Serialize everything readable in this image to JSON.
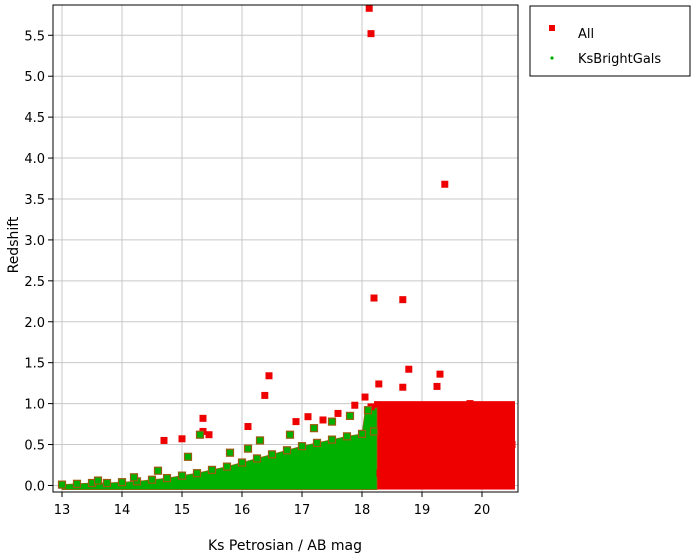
{
  "chart_data": {
    "type": "scatter",
    "xlabel": "Ks Petrosian / AB mag",
    "ylabel": "Redshift",
    "xlim": [
      12.85,
      20.6
    ],
    "ylim": [
      -0.08,
      5.87
    ],
    "x_ticks": [
      13,
      14,
      15,
      16,
      17,
      18,
      19,
      20
    ],
    "y_ticks": [
      0.0,
      0.5,
      1.0,
      1.5,
      2.0,
      2.5,
      3.0,
      3.5,
      4.0,
      4.5,
      5.0,
      5.5
    ],
    "x_tick_labels": [
      "13",
      "14",
      "15",
      "16",
      "17",
      "18",
      "19",
      "20"
    ],
    "y_tick_labels": [
      "0.0",
      "0.5",
      "1.0",
      "1.5",
      "2.0",
      "2.5",
      "3.0",
      "3.5",
      "4.0",
      "4.5",
      "5.0",
      "5.5"
    ],
    "grid": true,
    "legend_position": "right-outside-top",
    "series": [
      {
        "name": "All",
        "color": "#ee0000",
        "marker": "square",
        "dense_region": {
          "x": [
            18.2,
            20.55
          ],
          "y": [
            -0.05,
            1.03
          ]
        },
        "points": [
          [
            18.12,
            5.83
          ],
          [
            18.15,
            5.52
          ],
          [
            19.38,
            3.68
          ],
          [
            18.2,
            2.29
          ],
          [
            18.68,
            2.27
          ],
          [
            16.45,
            1.34
          ],
          [
            18.78,
            1.42
          ],
          [
            19.3,
            1.36
          ],
          [
            18.28,
            1.24
          ],
          [
            18.68,
            1.2
          ],
          [
            19.25,
            1.21
          ],
          [
            16.38,
            1.1
          ],
          [
            18.05,
            1.08
          ],
          [
            17.88,
            0.98
          ],
          [
            18.15,
            0.96
          ],
          [
            15.35,
            0.82
          ],
          [
            16.1,
            0.72
          ],
          [
            15.35,
            0.66
          ],
          [
            15.45,
            0.62
          ],
          [
            15.0,
            0.57
          ],
          [
            14.7,
            0.55
          ],
          [
            16.9,
            0.78
          ],
          [
            17.35,
            0.8
          ],
          [
            17.6,
            0.88
          ],
          [
            17.1,
            0.84
          ],
          [
            18.3,
            0.15
          ],
          [
            18.6,
            0.4
          ],
          [
            19.0,
            0.8
          ],
          [
            19.5,
            0.55
          ],
          [
            20.0,
            0.3
          ],
          [
            20.4,
            0.9
          ],
          [
            19.8,
            1.0
          ],
          [
            18.9,
            0.1
          ],
          [
            19.2,
            0.95
          ],
          [
            20.5,
            0.5
          ]
        ]
      },
      {
        "name": "KsBrightGals",
        "color": "#00b000",
        "marker": "circle",
        "points": [
          [
            13.0,
            0.01
          ],
          [
            13.25,
            0.02
          ],
          [
            13.5,
            0.03
          ],
          [
            13.75,
            0.03
          ],
          [
            14.0,
            0.04
          ],
          [
            14.25,
            0.05
          ],
          [
            14.5,
            0.07
          ],
          [
            14.75,
            0.09
          ],
          [
            15.0,
            0.12
          ],
          [
            15.25,
            0.15
          ],
          [
            15.5,
            0.19
          ],
          [
            15.75,
            0.23
          ],
          [
            16.0,
            0.28
          ],
          [
            16.25,
            0.33
          ],
          [
            16.5,
            0.38
          ],
          [
            16.75,
            0.43
          ],
          [
            17.0,
            0.48
          ],
          [
            17.25,
            0.52
          ],
          [
            17.5,
            0.56
          ],
          [
            17.75,
            0.6
          ],
          [
            18.0,
            0.63
          ],
          [
            18.2,
            0.66
          ],
          [
            15.3,
            0.62
          ],
          [
            15.1,
            0.35
          ],
          [
            16.3,
            0.55
          ],
          [
            17.2,
            0.7
          ],
          [
            17.8,
            0.85
          ],
          [
            16.8,
            0.62
          ],
          [
            14.6,
            0.18
          ],
          [
            14.2,
            0.1
          ],
          [
            13.6,
            0.06
          ],
          [
            16.1,
            0.45
          ],
          [
            17.5,
            0.78
          ],
          [
            18.1,
            0.92
          ],
          [
            15.8,
            0.4
          ]
        ]
      }
    ]
  }
}
